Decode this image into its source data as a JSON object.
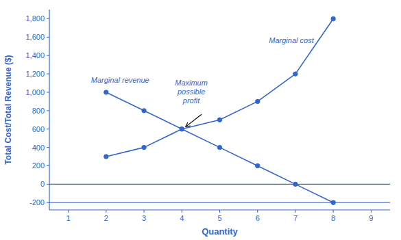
{
  "chart_data": {
    "type": "line",
    "x": [
      2,
      3,
      4,
      5,
      6,
      7,
      8
    ],
    "series": [
      {
        "color": "#3366cc",
        "marker": "circle",
        "values": [
          300,
          400,
          600,
          700,
          900,
          1200,
          1800
        ]
      },
      {
        "color": "#3366cc",
        "marker": "circle",
        "values": [
          1000,
          800,
          600,
          400,
          200,
          0,
          -200
        ]
      }
    ],
    "hlines": [
      0,
      -200
    ],
    "color": "#3366cc",
    "xlim": [
      0.5,
      9.5
    ],
    "ylim": [
      -280,
      1900
    ],
    "xticks": [
      1,
      2,
      3,
      4,
      5,
      6,
      7,
      8,
      9
    ],
    "yticks": [
      -200,
      0,
      200,
      400,
      600,
      800,
      {
        "value": 1000,
        "label": "1,000"
      },
      {
        "value": 1200,
        "label": "1,200"
      },
      {
        "value": 1400,
        "label": "1,400"
      },
      {
        "value": 1600,
        "label": "1,600"
      },
      {
        "value": 1800,
        "label": "1,800"
      }
    ],
    "xlabel": "Quantity",
    "ylabel": "Total Cost/Total Revenue ($)",
    "annotations": [
      {
        "text": "Marginal cost",
        "x": 6.3,
        "y": 1560
      },
      {
        "text": "Marginal revenue",
        "x": 1.6,
        "y": 1080
      },
      {
        "text": "Maximum\npossible\nprofit",
        "x": 4.25,
        "y": 860
      }
    ],
    "arrow": {
      "x": 4.52,
      "y": 760,
      "to_x": 4.1,
      "to_y": 625,
      "color": "#000000"
    }
  }
}
